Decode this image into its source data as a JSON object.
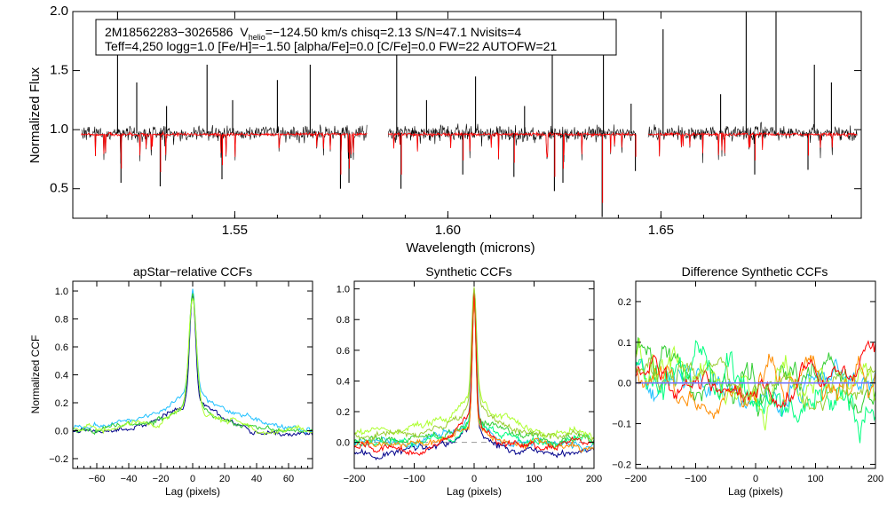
{
  "figure": {
    "info_line1": {
      "star_id": "2M18562283−3026586",
      "vhelio_prefix": "V",
      "vhelio_sub": "helio",
      "vhelio_rest": "=−124.50 km/s  chisq=2.13  S/N=47.1  Nvisits=4"
    },
    "info_line2": "Teff=4,250 logg=1.0 [Fe/H]=−1.50 [alpha/Fe]=0.0 [C/Fe]=0.0 FW=22 AUTOFW=21",
    "colors": {
      "observed": "#000000",
      "model": "#ff0000",
      "zero_line": "#7777ff",
      "ccf_series": [
        "#00008b",
        "#1ec0ff",
        "#32cd32",
        "#adff2f",
        "#00ff7f",
        "#ff8c00",
        "#ff0000",
        "#9acd32"
      ]
    }
  },
  "chart_data": [
    {
      "id": "spectrum",
      "type": "line",
      "title": "",
      "xlabel": "Wavelength (microns)",
      "ylabel": "Normalized Flux",
      "xlim": [
        1.512,
        1.697
      ],
      "ylim": [
        0.25,
        2.0
      ],
      "x_ticks": [
        1.55,
        1.6,
        1.65
      ],
      "x_tick_labels": [
        "1.55",
        "1.60",
        "1.65"
      ],
      "y_ticks": [
        0.5,
        1.0,
        1.5,
        2.0
      ],
      "y_tick_labels": [
        "0.5",
        "1.0",
        "1.5",
        "2.0"
      ],
      "chip_ranges": [
        [
          1.514,
          1.581
        ],
        [
          1.586,
          1.644
        ],
        [
          1.647,
          1.696
        ]
      ],
      "series": [
        {
          "name": "observed",
          "continuum": 0.97,
          "noise": 0.06
        },
        {
          "name": "model",
          "continuum": 0.96,
          "noise": 0.012
        }
      ],
      "emission_spikes": [
        {
          "x": 1.5225,
          "y": 2.0
        },
        {
          "x": 1.527,
          "y": 1.4
        },
        {
          "x": 1.534,
          "y": 1.2
        },
        {
          "x": 1.5435,
          "y": 1.55
        },
        {
          "x": 1.5495,
          "y": 1.25
        },
        {
          "x": 1.56,
          "y": 1.42
        },
        {
          "x": 1.5677,
          "y": 1.55
        },
        {
          "x": 1.588,
          "y": 2.0
        },
        {
          "x": 1.595,
          "y": 1.25
        },
        {
          "x": 1.6065,
          "y": 1.45
        },
        {
          "x": 1.618,
          "y": 1.2
        },
        {
          "x": 1.6245,
          "y": 1.7
        },
        {
          "x": 1.6365,
          "y": 2.0
        },
        {
          "x": 1.643,
          "y": 1.22
        },
        {
          "x": 1.6505,
          "y": 1.85
        },
        {
          "x": 1.664,
          "y": 1.3
        },
        {
          "x": 1.67,
          "y": 2.0
        },
        {
          "x": 1.677,
          "y": 2.0
        },
        {
          "x": 1.686,
          "y": 1.55
        },
        {
          "x": 1.69,
          "y": 1.4
        }
      ],
      "absorption_spikes": [
        {
          "x": 1.5233,
          "y": 0.55
        },
        {
          "x": 1.5325,
          "y": 0.52
        },
        {
          "x": 1.547,
          "y": 0.58
        },
        {
          "x": 1.5748,
          "y": 0.5
        },
        {
          "x": 1.5768,
          "y": 0.55
        },
        {
          "x": 1.589,
          "y": 0.5
        },
        {
          "x": 1.6035,
          "y": 0.62
        },
        {
          "x": 1.6155,
          "y": 0.6
        },
        {
          "x": 1.625,
          "y": 0.48
        },
        {
          "x": 1.627,
          "y": 0.55
        },
        {
          "x": 1.6362,
          "y": 0.26
        },
        {
          "x": 1.644,
          "y": 0.65
        },
        {
          "x": 1.672,
          "y": 0.62
        },
        {
          "x": 1.6845,
          "y": 0.66
        }
      ]
    },
    {
      "id": "apstar_ccf",
      "type": "line",
      "title": "apStar−relative CCFs",
      "xlabel": "Lag (pixels)",
      "ylabel": "Normalized CCF",
      "xlim": [
        -75,
        75
      ],
      "ylim": [
        -0.27,
        1.07
      ],
      "x_ticks": [
        -60,
        -40,
        -20,
        0,
        20,
        40,
        60
      ],
      "x_tick_labels": [
        "−60",
        "−40",
        "−20",
        "0",
        "20",
        "40",
        "60"
      ],
      "y_ticks": [
        -0.2,
        0.0,
        0.2,
        0.4,
        0.6,
        0.8,
        1.0
      ],
      "y_tick_labels": [
        "−0.2",
        "0.0",
        "0.2",
        "0.4",
        "0.6",
        "0.8",
        "1.0"
      ],
      "series": [
        {
          "name": "ccf-1",
          "peak": 1.0,
          "core_width": 1.8,
          "wing_amp": 0.28,
          "wing_width": 18,
          "baseline": -0.01
        },
        {
          "name": "ccf-2",
          "peak": 0.98,
          "core_width": 2.0,
          "wing_amp": 0.3,
          "wing_width": 22,
          "baseline": 0.02
        },
        {
          "name": "ccf-3",
          "peak": 0.99,
          "core_width": 2.2,
          "wing_amp": 0.22,
          "wing_width": 20,
          "baseline": 0.0
        },
        {
          "name": "ccf-4",
          "peak": 0.97,
          "core_width": 2.4,
          "wing_amp": 0.18,
          "wing_width": 24,
          "baseline": 0.0
        }
      ]
    },
    {
      "id": "synthetic_ccf",
      "type": "line",
      "title": "Synthetic CCFs",
      "xlabel": "Lag (pixels)",
      "ylabel": "",
      "xlim": [
        -200,
        200
      ],
      "ylim": [
        -0.17,
        1.05
      ],
      "x_ticks": [
        -200,
        -100,
        0,
        100,
        200
      ],
      "x_tick_labels": [
        "−200",
        "−100",
        "0",
        "100",
        "200"
      ],
      "y_ticks": [
        0.0,
        0.2,
        0.4,
        0.6,
        0.8,
        1.0
      ],
      "y_tick_labels": [
        "0.0",
        "0.2",
        "0.4",
        "0.6",
        "0.8",
        "1.0"
      ],
      "series": [
        {
          "name": "ccf-1",
          "peak": 1.0,
          "core_width": 3,
          "wing_amp": 0.18,
          "wing_width": 25,
          "baseline": -0.05
        },
        {
          "name": "ccf-2",
          "peak": 0.98,
          "core_width": 3.5,
          "wing_amp": 0.2,
          "wing_width": 30,
          "baseline": 0.0
        },
        {
          "name": "ccf-3",
          "peak": 0.97,
          "core_width": 3,
          "wing_amp": 0.22,
          "wing_width": 28,
          "baseline": 0.02
        },
        {
          "name": "ccf-4",
          "peak": 0.95,
          "core_width": 4,
          "wing_amp": 0.3,
          "wing_width": 50,
          "baseline": 0.05
        },
        {
          "name": "ccf-5",
          "peak": 0.99,
          "core_width": 3,
          "wing_amp": 0.2,
          "wing_width": 30,
          "baseline": 0.0
        },
        {
          "name": "ccf-6",
          "peak": 1.0,
          "core_width": 3,
          "wing_amp": 0.18,
          "wing_width": 26,
          "baseline": -0.02
        },
        {
          "name": "ccf-7",
          "peak": 1.0,
          "core_width": 3,
          "wing_amp": 0.2,
          "wing_width": 28,
          "baseline": -0.03
        },
        {
          "name": "ccf-8",
          "peak": 0.96,
          "core_width": 4,
          "wing_amp": 0.25,
          "wing_width": 40,
          "baseline": 0.04
        }
      ]
    },
    {
      "id": "difference_ccf",
      "type": "line",
      "title": "Difference Synthetic CCFs",
      "xlabel": "Lag (pixels)",
      "ylabel": "",
      "xlim": [
        -200,
        200
      ],
      "ylim": [
        -0.21,
        0.25
      ],
      "x_ticks": [
        -200,
        -100,
        0,
        100,
        200
      ],
      "x_tick_labels": [
        "−200",
        "−100",
        "0",
        "100",
        "200"
      ],
      "y_ticks": [
        -0.2,
        -0.1,
        0.0,
        0.1,
        0.2
      ],
      "y_tick_labels": [
        "−0.2",
        "−0.1",
        "0.0",
        "0.1",
        "0.2"
      ],
      "zero_line": 0.0,
      "series": [
        {
          "name": "diff-1",
          "amplitude": 0.06
        },
        {
          "name": "diff-2",
          "amplitude": 0.08
        },
        {
          "name": "diff-3",
          "amplitude": 0.07
        },
        {
          "name": "diff-4",
          "amplitude": 0.09
        },
        {
          "name": "diff-5",
          "amplitude": 0.06
        },
        {
          "name": "diff-6",
          "amplitude": 0.05
        },
        {
          "name": "diff-7",
          "amplitude": 0.05
        }
      ]
    }
  ]
}
